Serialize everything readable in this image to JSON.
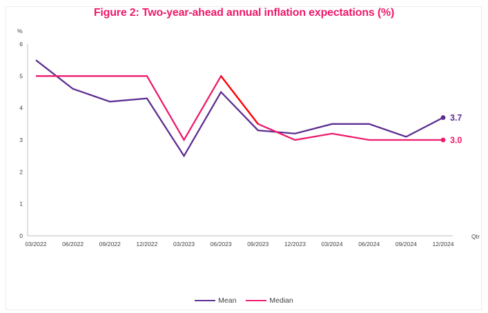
{
  "figure": {
    "title": "Figure 2: Two-year-ahead annual inflation expectations (%)"
  },
  "colors": {
    "title": "#EE1A6B",
    "mean_line": "#5C2D91",
    "median_line": "#EE1A6B",
    "median_red_segment": "#FF0000",
    "axis_line": "#c9c9c9",
    "tick_text": "#3f3f3f"
  },
  "chart_data": {
    "type": "line",
    "title": "Figure 2: Two-year-ahead annual inflation expectations (%)",
    "xlabel": "Qtr",
    "ylabel": "%",
    "ylim": [
      0,
      6
    ],
    "yticks": [
      0,
      1,
      2,
      3,
      4,
      5,
      6
    ],
    "grid": false,
    "legend_position": "bottom",
    "categories": [
      "03/2022",
      "06/2022",
      "09/2022",
      "12/2022",
      "03/2023",
      "06/2023",
      "09/2023",
      "12/2023",
      "03/2024",
      "06/2024",
      "09/2024",
      "12/2024"
    ],
    "series": [
      {
        "name": "Mean",
        "color": "#5C2D91",
        "values": [
          5.5,
          4.6,
          4.2,
          4.3,
          2.5,
          4.5,
          3.3,
          3.2,
          3.5,
          3.5,
          3.1,
          3.7
        ],
        "end_label": "3.7",
        "end_marker": "dot"
      },
      {
        "name": "Median",
        "color": "#EE1A6B",
        "values": [
          5.0,
          5.0,
          5.0,
          5.0,
          3.0,
          5.0,
          3.5,
          3.0,
          3.2,
          3.0,
          3.0,
          3.0
        ],
        "end_label": "3.0",
        "end_marker": "dot"
      }
    ],
    "median_red_segment": {
      "from": "06/2023",
      "to": "09/2023",
      "color": "#FF0000"
    }
  }
}
